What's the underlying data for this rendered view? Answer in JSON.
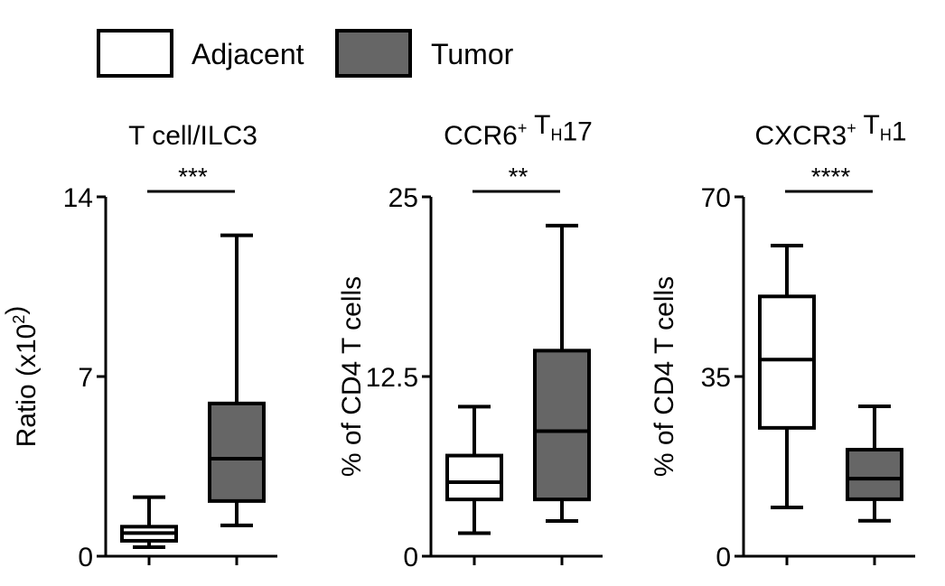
{
  "legend": [
    {
      "label": "Adjacent",
      "color": "#ffffff"
    },
    {
      "label": "Tumor",
      "color": "#666666"
    }
  ],
  "chart_data": [
    {
      "type": "box",
      "title_parts": [
        {
          "t": "T cell/ILC3"
        }
      ],
      "ylabel_parts": [
        {
          "t": "Ratio (x10"
        },
        {
          "t": "2",
          "s": "sup"
        },
        {
          "t": ")"
        }
      ],
      "ylim": [
        0,
        14
      ],
      "yticks": [
        "0",
        "7",
        "14"
      ],
      "ytick_values": [
        0,
        7,
        14
      ],
      "significance": "***",
      "series": [
        {
          "name": "Adjacent",
          "min": 0.35,
          "q1": 0.6,
          "median": 0.9,
          "q3": 1.15,
          "max": 2.3
        },
        {
          "name": "Tumor",
          "min": 1.2,
          "q1": 2.15,
          "median": 3.8,
          "q3": 5.95,
          "max": 12.5
        }
      ]
    },
    {
      "type": "box",
      "title_parts": [
        {
          "t": "CCR6"
        },
        {
          "t": "+",
          "s": "sup"
        },
        {
          "t": " T"
        },
        {
          "t": "H",
          "s": "sub"
        },
        {
          "t": "17"
        }
      ],
      "ylabel_parts": [
        {
          "t": "% of CD4 T  cells"
        }
      ],
      "ylim": [
        0,
        25
      ],
      "yticks": [
        "0",
        "12.5",
        "25"
      ],
      "ytick_values": [
        0,
        12.5,
        25
      ],
      "significance": "**",
      "series": [
        {
          "name": "Adjacent",
          "min": 1.6,
          "q1": 3.95,
          "median": 5.15,
          "q3": 7.0,
          "max": 10.4
        },
        {
          "name": "Tumor",
          "min": 2.45,
          "q1": 3.95,
          "median": 8.7,
          "q3": 14.3,
          "max": 23.0
        }
      ]
    },
    {
      "type": "box",
      "title_parts": [
        {
          "t": "CXCR3"
        },
        {
          "t": "+",
          "s": "sup"
        },
        {
          "t": " T"
        },
        {
          "t": "H",
          "s": "sub"
        },
        {
          "t": "1"
        }
      ],
      "ylabel_parts": [
        {
          "t": "% of CD4 T  cells"
        }
      ],
      "ylim": [
        0,
        70
      ],
      "yticks": [
        "0",
        "35",
        "70"
      ],
      "ytick_values": [
        0,
        35,
        70
      ],
      "significance": "****",
      "series": [
        {
          "name": "Adjacent",
          "min": 9.5,
          "q1": 25.0,
          "median": 38.3,
          "q3": 50.6,
          "max": 60.5
        },
        {
          "name": "Tumor",
          "min": 6.9,
          "q1": 11.1,
          "median": 15.1,
          "q3": 20.75,
          "max": 29.2
        }
      ]
    }
  ]
}
